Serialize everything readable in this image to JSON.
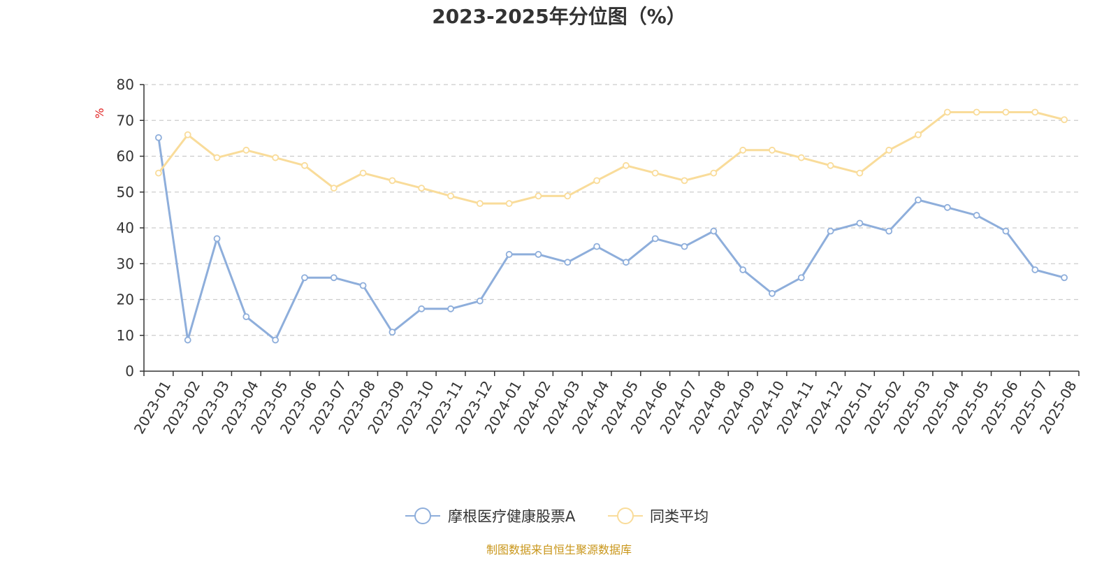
{
  "chart_data": {
    "type": "line",
    "title": "2023-2025年分位图（%）",
    "ylabel": "%",
    "ylim": [
      0,
      80
    ],
    "yticks": [
      0,
      10,
      20,
      30,
      40,
      50,
      60,
      70,
      80
    ],
    "grid": true,
    "legend_position": "bottom-center",
    "categories": [
      "2023-01",
      "2023-02",
      "2023-03",
      "2023-04",
      "2023-05",
      "2023-06",
      "2023-07",
      "2023-08",
      "2023-09",
      "2023-10",
      "2023-11",
      "2023-12",
      "2024-01",
      "2024-02",
      "2024-03",
      "2024-04",
      "2024-05",
      "2024-06",
      "2024-07",
      "2024-08",
      "2024-09",
      "2024-10",
      "2024-11",
      "2024-12",
      "2025-01",
      "2025-02",
      "2025-03",
      "2025-04",
      "2025-05",
      "2025-06",
      "2025-07",
      "2025-08"
    ],
    "series": [
      {
        "name": "摩根医疗健康股票A",
        "color": "#8eaedb",
        "values": [
          65.2,
          8.7,
          37.0,
          15.2,
          8.7,
          26.1,
          26.1,
          23.9,
          10.9,
          17.4,
          17.4,
          19.6,
          32.6,
          32.6,
          30.4,
          34.8,
          30.4,
          37.0,
          34.8,
          39.1,
          28.3,
          21.7,
          26.1,
          39.1,
          41.3,
          39.1,
          47.8,
          45.7,
          43.5,
          39.1,
          28.3,
          26.1
        ]
      },
      {
        "name": "同类平均",
        "color": "#f9dc9a",
        "values": [
          55.3,
          66.0,
          59.6,
          61.7,
          59.6,
          57.4,
          51.1,
          55.3,
          53.2,
          51.1,
          48.9,
          46.8,
          46.8,
          48.9,
          48.9,
          53.2,
          57.4,
          55.3,
          53.2,
          55.3,
          61.7,
          61.7,
          59.6,
          57.4,
          55.3,
          61.7,
          66.0,
          72.3,
          72.3,
          72.3,
          72.3,
          70.2
        ]
      }
    ],
    "unit_color": "#e02020"
  },
  "footer": {
    "source": "制图数据来自恒生聚源数据库",
    "source_color": "#c9961a"
  },
  "colors": {
    "axis": "#333333",
    "grid": "#cccccc"
  }
}
